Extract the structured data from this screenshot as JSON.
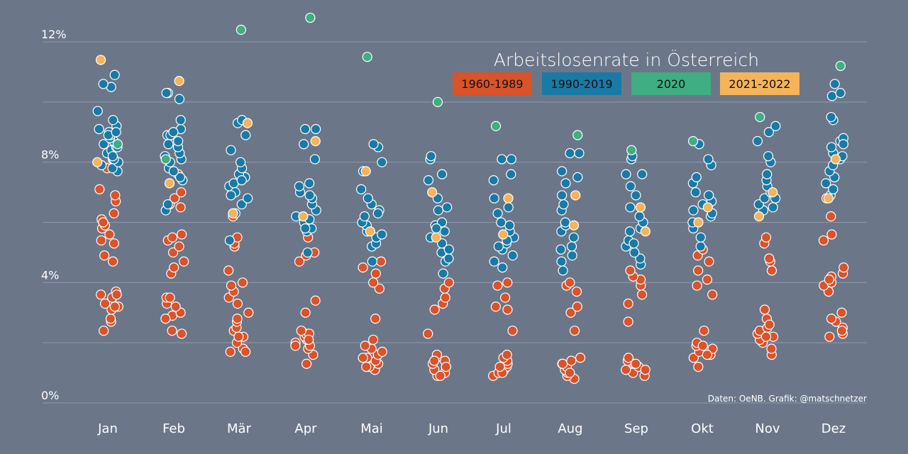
{
  "chart_data": {
    "type": "scatter",
    "title": "Arbeitslosenrate in Österreich",
    "credit": "Daten: OeNB. Grafik: @matschnetzer",
    "xlabel": "",
    "ylabel": "",
    "ylim": [
      0,
      12.5
    ],
    "yticks": [
      0,
      4,
      8,
      12
    ],
    "ytick_labels": [
      "0%",
      "",
      "",
      ""
    ],
    "ytick_labels_full": [
      "0%",
      "4%",
      "8%",
      "12%"
    ],
    "categories": [
      "Jan",
      "Feb",
      "Mär",
      "Apr",
      "Mai",
      "Jun",
      "Jul",
      "Aug",
      "Sep",
      "Okt",
      "Nov",
      "Dez"
    ],
    "legend_position": "top-right",
    "colors": {
      "1960-1989": "#d9532b",
      "1990-2019": "#1a7aa6",
      "2020": "#3fae82",
      "2021-2022": "#f5b45a",
      "background": "#6b7789",
      "grid": "#8e99aa"
    },
    "series": [
      {
        "name": "1960-1989",
        "color": "#d9532b",
        "values": [
          [
            2.7,
            2.4,
            2.8,
            3.2,
            3.1,
            3.4,
            3.6,
            3.7,
            3.5,
            3.2,
            4.7,
            4.9,
            5.3,
            5.4,
            5.6,
            5.8,
            6.1,
            6.3,
            6.7,
            6.9,
            7.1,
            7.8,
            8.1,
            5.9,
            6.0,
            3.3,
            3.6
          ],
          [
            2.3,
            2.4,
            2.9,
            3.0,
            3.3,
            3.5,
            3.5,
            4.3,
            4.5,
            4.7,
            5.0,
            5.2,
            5.4,
            5.5,
            5.6,
            6.5,
            6.6,
            6.8,
            7.0,
            7.6,
            2.8,
            3.2
          ],
          [
            1.7,
            1.8,
            2.0,
            2.2,
            2.4,
            2.5,
            2.7,
            2.8,
            3.0,
            3.3,
            3.5,
            3.7,
            3.9,
            4.0,
            4.4,
            5.2,
            5.3,
            5.5,
            6.2,
            1.7,
            2.2
          ],
          [
            1.3,
            1.6,
            1.8,
            1.9,
            2.0,
            2.1,
            2.2,
            2.3,
            2.3,
            2.4,
            3.0,
            3.4,
            4.7,
            4.9,
            5.0,
            5.5,
            1.9,
            2.1
          ],
          [
            1.1,
            1.2,
            1.3,
            1.4,
            1.5,
            1.6,
            1.7,
            1.8,
            1.9,
            2.1,
            2.8,
            3.8,
            4.0,
            4.3,
            4.5,
            4.7,
            1.5,
            1.2
          ],
          [
            0.9,
            1.0,
            1.1,
            1.2,
            1.3,
            1.4,
            1.5,
            1.6,
            2.3,
            3.1,
            3.3,
            3.5,
            3.8,
            4.0,
            0.9,
            1.2,
            1.4
          ],
          [
            0.9,
            1.0,
            1.1,
            1.2,
            1.3,
            1.4,
            1.5,
            1.6,
            2.4,
            3.1,
            3.2,
            3.5,
            3.9,
            4.0,
            1.0,
            1.2
          ],
          [
            0.8,
            0.9,
            1.0,
            1.1,
            1.2,
            1.3,
            1.4,
            1.5,
            2.4,
            3.0,
            3.2,
            3.7,
            3.9,
            4.0,
            1.0,
            1.3
          ],
          [
            0.9,
            1.0,
            1.1,
            1.2,
            1.3,
            1.4,
            1.5,
            2.7,
            3.3,
            3.6,
            3.9,
            4.1,
            4.2,
            4.4,
            1.3,
            1.1
          ],
          [
            1.2,
            1.5,
            1.6,
            1.7,
            1.8,
            1.9,
            2.0,
            2.4,
            3.6,
            3.9,
            4.1,
            4.4,
            4.7,
            4.9,
            5.1,
            1.6,
            1.9
          ],
          [
            1.6,
            1.8,
            2.0,
            2.1,
            2.2,
            2.3,
            2.4,
            2.5,
            2.8,
            3.1,
            4.4,
            4.7,
            4.8,
            5.3,
            5.5,
            2.2,
            2.6
          ],
          [
            2.2,
            2.3,
            2.5,
            2.7,
            2.8,
            3.0,
            3.7,
            3.9,
            4.0,
            4.2,
            4.3,
            4.5,
            5.4,
            5.6,
            6.2,
            6.8,
            2.4,
            4.1
          ]
        ]
      },
      {
        "name": "1990-2019",
        "color": "#1a7aa6",
        "values": [
          [
            7.7,
            7.8,
            8.0,
            8.1,
            8.3,
            8.4,
            8.5,
            8.6,
            8.7,
            8.8,
            8.9,
            9.0,
            9.1,
            9.2,
            9.4,
            9.7,
            10.5,
            10.6,
            10.9,
            8.2,
            8.5,
            8.9,
            9.0,
            7.9
          ],
          [
            6.4,
            6.6,
            7.4,
            7.5,
            7.8,
            8.0,
            8.1,
            8.3,
            8.5,
            8.7,
            8.9,
            9.1,
            9.4,
            10.1,
            10.3,
            10.3,
            8.2,
            8.6,
            8.9,
            9.0,
            7.7
          ],
          [
            5.4,
            6.3,
            6.6,
            6.8,
            7.0,
            7.2,
            7.3,
            7.5,
            7.6,
            7.8,
            8.0,
            8.4,
            8.9,
            9.3,
            9.4,
            7.4,
            7.0,
            6.9
          ],
          [
            5.0,
            5.7,
            5.8,
            6.0,
            6.2,
            6.4,
            6.6,
            6.8,
            7.0,
            7.2,
            7.3,
            8.1,
            8.6,
            9.1,
            9.1,
            6.1,
            5.8,
            6.9
          ],
          [
            4.7,
            5.2,
            5.3,
            5.5,
            5.7,
            5.9,
            6.0,
            6.2,
            6.4,
            6.6,
            6.8,
            7.1,
            7.7,
            8.0,
            8.5,
            8.6,
            5.6,
            6.3
          ],
          [
            4.3,
            4.7,
            4.8,
            5.0,
            5.3,
            5.5,
            5.7,
            5.9,
            6.0,
            6.4,
            6.5,
            6.8,
            7.4,
            7.6,
            8.1,
            8.2,
            5.1,
            5.8
          ],
          [
            4.5,
            4.7,
            4.9,
            5.1,
            5.3,
            5.5,
            5.7,
            5.9,
            6.0,
            6.3,
            6.5,
            6.8,
            7.4,
            7.6,
            8.1,
            8.1,
            5.4,
            5.2
          ],
          [
            4.4,
            4.7,
            4.9,
            5.2,
            5.5,
            5.7,
            5.9,
            6.0,
            6.4,
            6.6,
            6.9,
            7.3,
            7.5,
            7.7,
            8.3,
            8.3,
            5.1
          ],
          [
            4.6,
            4.8,
            5.0,
            5.2,
            5.4,
            5.7,
            5.8,
            6.0,
            6.2,
            6.5,
            6.9,
            7.2,
            7.6,
            7.6,
            8.1,
            8.2,
            5.3
          ],
          [
            5.2,
            5.5,
            5.8,
            6.0,
            6.2,
            6.4,
            6.6,
            6.7,
            6.9,
            7.0,
            7.3,
            7.5,
            7.9,
            8.1,
            8.6,
            6.3
          ],
          [
            6.4,
            6.6,
            6.8,
            7.0,
            7.2,
            7.4,
            7.6,
            8.0,
            8.2,
            8.7,
            9.0,
            9.2,
            6.5,
            6.8
          ],
          [
            6.9,
            7.1,
            7.3,
            7.5,
            7.7,
            7.9,
            8.1,
            8.3,
            8.5,
            8.7,
            8.8,
            9.4,
            9.5,
            10.2,
            10.3,
            10.6,
            8.2,
            8.6
          ]
        ]
      },
      {
        "name": "2020",
        "color": "#3fae82",
        "values": [
          [
            8.6
          ],
          [
            8.1
          ],
          [
            12.4
          ],
          [
            12.8
          ],
          [
            11.5
          ],
          [
            10.0
          ],
          [
            9.2
          ],
          [
            8.9
          ],
          [
            8.4
          ],
          [
            8.7
          ],
          [
            9.5
          ],
          [
            11.2
          ]
        ]
      },
      {
        "name": "2021-2022",
        "color": "#f5b45a",
        "values": [
          [
            11.4,
            8.0
          ],
          [
            10.7,
            7.3
          ],
          [
            9.3,
            6.3
          ],
          [
            8.7,
            6.2
          ],
          [
            7.7,
            5.7
          ],
          [
            7.0,
            5.5
          ],
          [
            6.8,
            5.6
          ],
          [
            6.9,
            5.9
          ],
          [
            6.5,
            5.7
          ],
          [
            6.5,
            6.0
          ],
          [
            7.0,
            6.2
          ],
          [
            8.1,
            6.8
          ]
        ]
      }
    ]
  }
}
